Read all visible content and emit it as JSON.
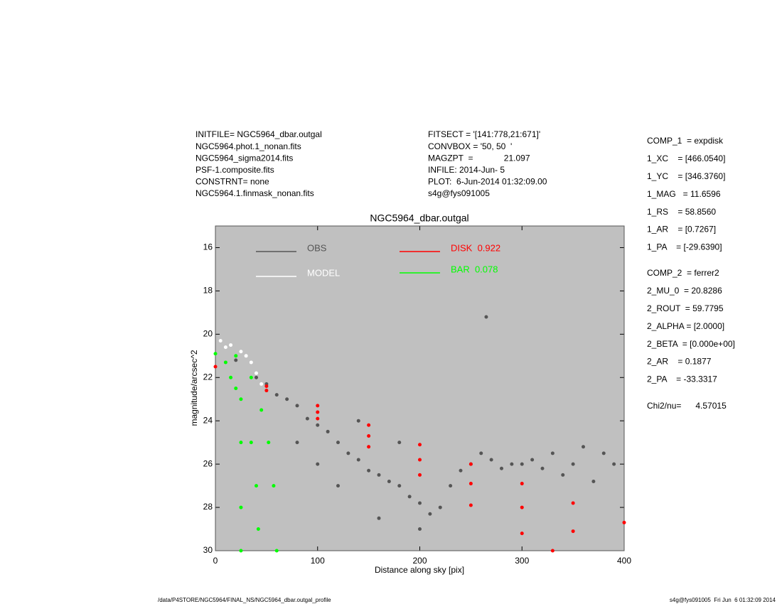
{
  "header": {
    "left": [
      "INITFILE= NGC5964_dbar.outgal",
      "NGC5964.phot.1_nonan.fits",
      "NGC5964_sigma2014.fits",
      "PSF-1.composite.fits",
      "CONSTRNT= none",
      "NGC5964.1.finmask_nonan.fits"
    ],
    "middle": [
      "FITSECT = '[141:778,21:671]'",
      "CONVBOX = '50, 50  '",
      "MAGZPT  =             21.097",
      "INFILE: 2014-Jun- 5",
      "PLOT:  6-Jun-2014 01:32:09.00",
      "s4g@fys091005"
    ]
  },
  "parameters": [
    [
      "COMP_1  = expdisk",
      "1_XC    = [466.0540]",
      "1_YC    = [346.3760]",
      "1_MAG   = 11.6596",
      "1_RS    = 58.8560",
      "1_AR    = [0.7267]",
      "1_PA    = [-29.6390]"
    ],
    [
      "COMP_2  = ferrer2",
      "2_MU_0  = 20.8286",
      "2_ROUT  = 59.7795",
      "2_ALPHA = [2.0000]",
      "2_BETA  = [0.000e+00]",
      "2_AR    = 0.1877",
      "2_PA    = -33.3317"
    ],
    [
      "Chi2/nu=      4.57015"
    ]
  ],
  "footer": {
    "left": "/data/P4STORE/NGC5964/FINAL_NS/NGC5964_dbar.outgal_profile",
    "right": "s4g@fys091005  Fri Jun  6 01:32:09 2014"
  },
  "chart_data": {
    "type": "scatter",
    "title": "NGC5964_dbar.outgal",
    "x_label": "Distance along sky [pix]",
    "y_label": "magnitude/arcsec^2",
    "xlim": [
      0,
      400
    ],
    "xticks": [
      0,
      100,
      200,
      300,
      400
    ],
    "ylim": [
      30,
      15
    ],
    "yticks": [
      16,
      18,
      20,
      22,
      24,
      26,
      28,
      30
    ],
    "background": "#c0c0c0",
    "series": [
      {
        "name": "OBS",
        "color": "#555555",
        "x": [
          20,
          40,
          50,
          60,
          70,
          80,
          90,
          100,
          110,
          120,
          130,
          140,
          150,
          160,
          170,
          180,
          190,
          200,
          210,
          220,
          230,
          240,
          250,
          260,
          270,
          280,
          290,
          300,
          310,
          320,
          330,
          340,
          350,
          360,
          370,
          380,
          390,
          140,
          180,
          120,
          160,
          200,
          265,
          100,
          80
        ],
        "y": [
          21.2,
          22.0,
          22.3,
          22.8,
          23.0,
          23.3,
          23.9,
          24.2,
          24.5,
          25.0,
          25.5,
          25.8,
          26.3,
          26.5,
          26.8,
          27.0,
          27.5,
          27.8,
          28.3,
          28.0,
          27.0,
          26.3,
          26.0,
          25.5,
          25.8,
          26.2,
          26.0,
          26.0,
          25.8,
          26.2,
          25.5,
          26.5,
          26.0,
          25.2,
          26.8,
          25.5,
          26.0,
          24.0,
          25.0,
          27.0,
          28.5,
          29.0,
          19.2,
          26.0,
          25.0
        ]
      },
      {
        "name": "MODEL",
        "color": "#ffffff",
        "x": [
          5,
          10,
          15,
          25,
          30,
          35,
          40,
          45
        ],
        "y": [
          20.3,
          20.6,
          20.5,
          20.8,
          21.0,
          21.3,
          21.8,
          22.3
        ]
      },
      {
        "name": "DISK  0.922",
        "color": "#ff0000",
        "x": [
          0,
          50,
          100,
          150,
          200,
          250,
          300,
          350,
          400,
          50,
          100,
          150,
          200,
          250,
          300,
          330,
          100,
          150,
          200,
          250,
          300,
          350
        ],
        "y": [
          21.5,
          22.4,
          23.3,
          24.2,
          25.1,
          26.0,
          26.9,
          27.8,
          28.7,
          22.6,
          23.9,
          25.2,
          26.5,
          27.9,
          29.2,
          30.0,
          23.6,
          24.7,
          25.8,
          26.9,
          28.0,
          29.1
        ]
      },
      {
        "name": "BAR  0.078",
        "color": "#00ff00",
        "x": [
          0,
          10,
          20,
          25,
          25,
          25,
          20,
          35,
          45,
          52,
          57,
          60,
          15,
          25,
          35,
          40,
          42
        ],
        "y": [
          20.9,
          21.3,
          22.5,
          25,
          28,
          30,
          21.0,
          22,
          23.5,
          25,
          27,
          30,
          22,
          23,
          25,
          27,
          29
        ]
      }
    ]
  }
}
